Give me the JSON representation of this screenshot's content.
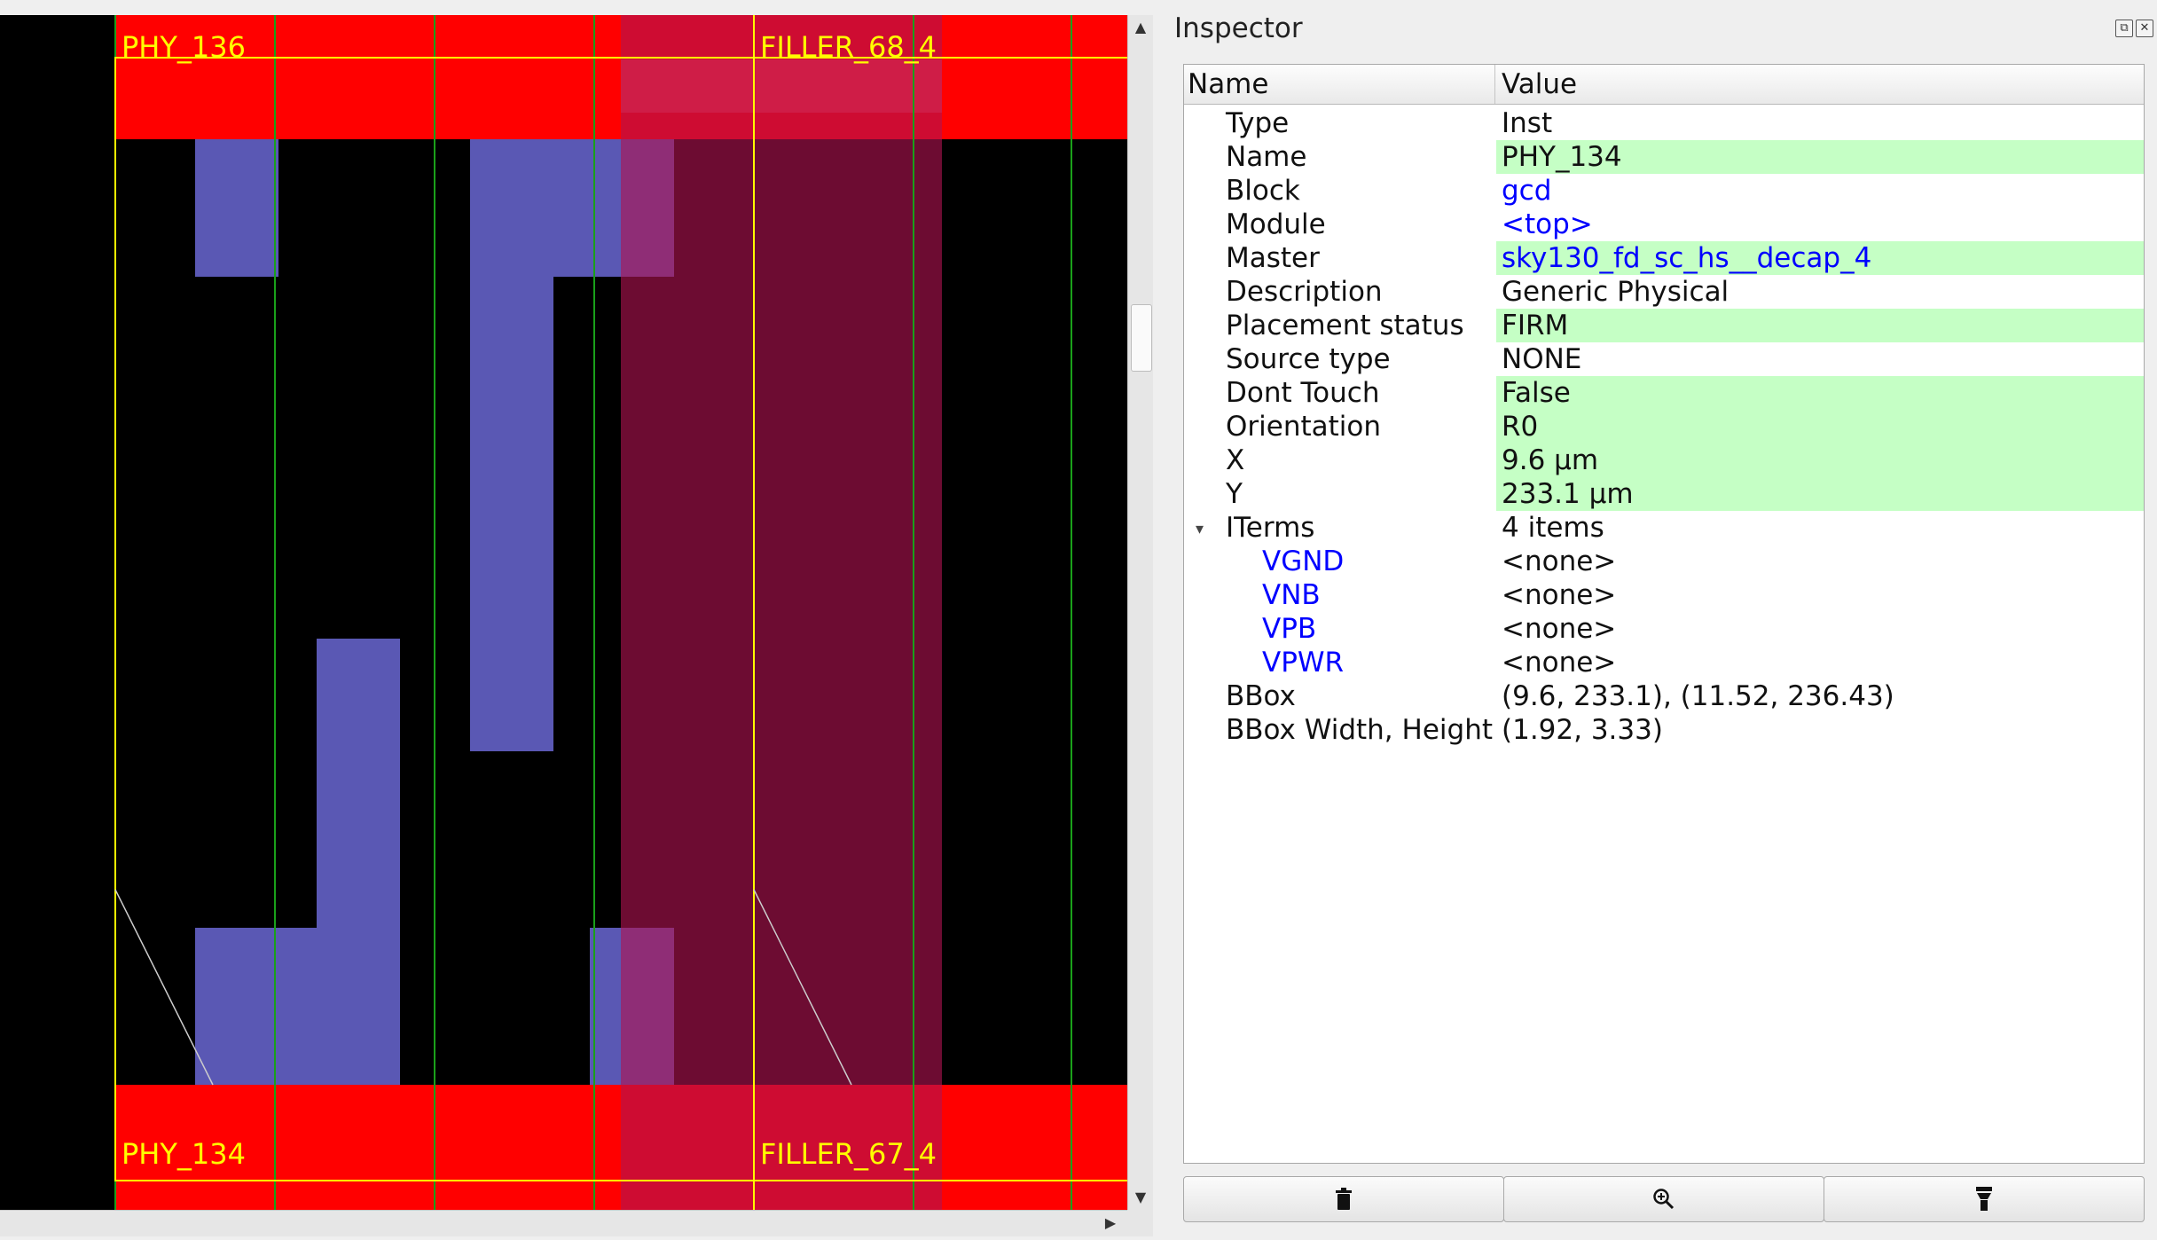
{
  "layout": {
    "cell_labels": {
      "top_left": "PHY_136",
      "top_right": "FILLER_68_4",
      "bottom_left": "PHY_134",
      "bottom_right": "FILLER_67_4"
    },
    "colors": {
      "background": "#000000",
      "power_rail": "#ff0000",
      "metal": "#5a58b4",
      "selection_overlay": "#b01450",
      "cell_outline": "#ffff00",
      "track_line": "#1aa01a"
    }
  },
  "inspector": {
    "title": "Inspector",
    "dock_float_icon": "float-icon",
    "dock_close_icon": "close-icon",
    "columns": {
      "name": "Name",
      "value": "Value"
    },
    "properties": [
      {
        "name": "Type",
        "value": "Inst",
        "highlight": false,
        "link": false
      },
      {
        "name": "Name",
        "value": "PHY_134",
        "highlight": true,
        "link": false
      },
      {
        "name": "Block",
        "value": "gcd",
        "highlight": false,
        "link": true
      },
      {
        "name": "Module",
        "value": "<top>",
        "highlight": false,
        "link": true
      },
      {
        "name": "Master",
        "value": "sky130_fd_sc_hs__decap_4",
        "highlight": true,
        "link": true
      },
      {
        "name": "Description",
        "value": "Generic Physical",
        "highlight": false,
        "link": false
      },
      {
        "name": "Placement status",
        "value": "FIRM",
        "highlight": true,
        "link": false
      },
      {
        "name": "Source type",
        "value": "NONE",
        "highlight": false,
        "link": false
      },
      {
        "name": "Dont Touch",
        "value": "False",
        "highlight": true,
        "link": false
      },
      {
        "name": "Orientation",
        "value": "R0",
        "highlight": true,
        "link": false
      },
      {
        "name": "X",
        "value": "9.6 μm",
        "highlight": true,
        "link": false
      },
      {
        "name": "Y",
        "value": "233.1 μm",
        "highlight": true,
        "link": false
      }
    ],
    "iterms": {
      "name": "ITerms",
      "value": "4 items",
      "expanded": true,
      "items": [
        {
          "name": "VGND",
          "value": "<none>"
        },
        {
          "name": "VNB",
          "value": "<none>"
        },
        {
          "name": "VPB",
          "value": "<none>"
        },
        {
          "name": "VPWR",
          "value": "<none>"
        }
      ]
    },
    "bbox": [
      {
        "name": "BBox",
        "value": "(9.6, 233.1), (11.52, 236.43)"
      },
      {
        "name": "BBox Width, Height",
        "value": "(1.92, 3.33)"
      }
    ],
    "actions": [
      {
        "icon": "trash-icon"
      },
      {
        "icon": "zoom-in-icon"
      },
      {
        "icon": "highlight-icon"
      }
    ]
  }
}
